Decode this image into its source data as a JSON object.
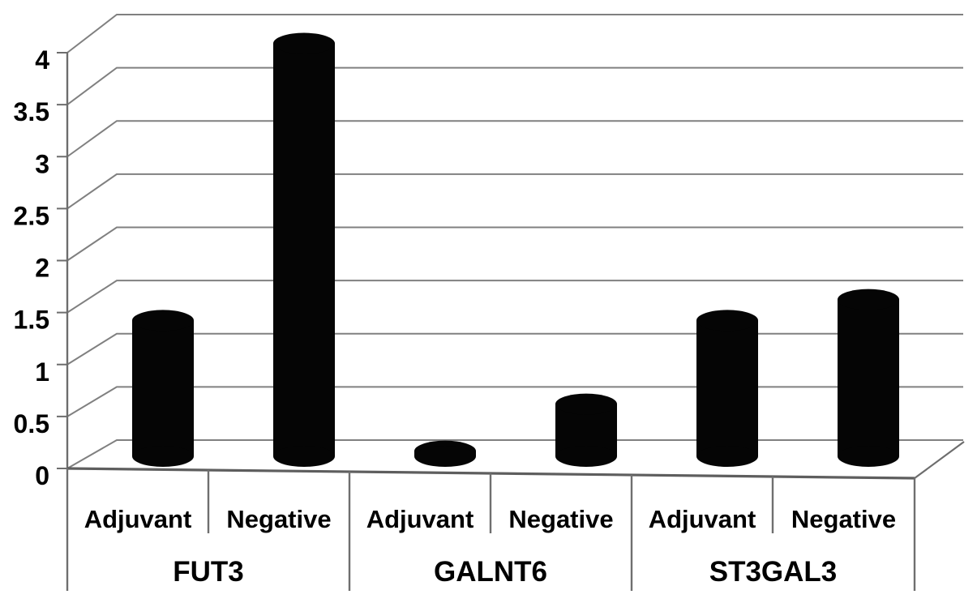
{
  "chart_data": {
    "type": "bar",
    "style_3d": "3d-cylinder-bars",
    "title": "",
    "xlabel": "",
    "ylabel": "",
    "ylim": [
      0,
      4
    ],
    "y_ticks": [
      0,
      0.5,
      1,
      1.5,
      2,
      2.5,
      3,
      3.5,
      4
    ],
    "grid": true,
    "legend": null,
    "categories": [
      "FUT3",
      "GALNT6",
      "ST3GAL3"
    ],
    "sub_categories": [
      "Adjuvant",
      "Negative"
    ],
    "groups": [
      {
        "label": "FUT3",
        "bars": [
          {
            "label": "Adjuvant",
            "value": 1.4
          },
          {
            "label": "Negative",
            "value": 4.05
          }
        ]
      },
      {
        "label": "GALNT6",
        "bars": [
          {
            "label": "Adjuvant",
            "value": 0.15
          },
          {
            "label": "Negative",
            "value": 0.6
          }
        ]
      },
      {
        "label": "ST3GAL3",
        "bars": [
          {
            "label": "Adjuvant",
            "value": 1.4
          },
          {
            "label": "Negative",
            "value": 1.6
          }
        ]
      }
    ],
    "colors": {
      "bar": "#050505",
      "grid": "#808080",
      "axis": "#6d6d6d",
      "floor_edge": "#5e5e5e",
      "separator": "#6f6f6f",
      "text": "#000000",
      "background": "#ffffff"
    }
  }
}
